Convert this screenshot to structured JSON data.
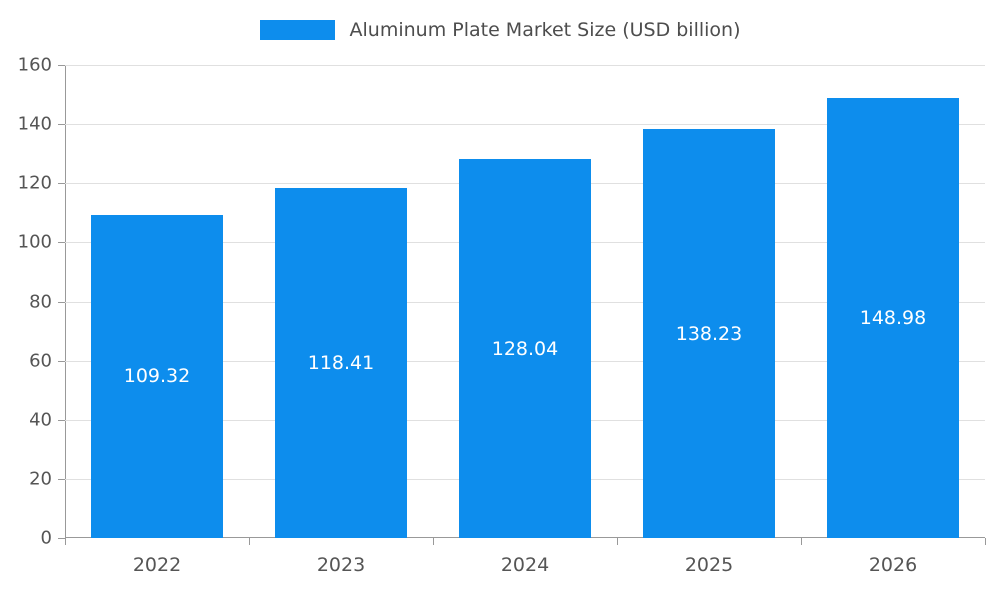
{
  "chart_data": {
    "type": "bar",
    "title": "Aluminum Plate Market Size (USD billion)",
    "categories": [
      "2022",
      "2023",
      "2024",
      "2025",
      "2026"
    ],
    "values": [
      109.32,
      118.41,
      128.04,
      138.23,
      148.98
    ],
    "value_labels": [
      "109.32",
      "118.41",
      "128.04",
      "138.23",
      "148.98"
    ],
    "xlabel": "",
    "ylabel": "",
    "ylim": [
      0,
      160
    ],
    "yticks": [
      0,
      20,
      40,
      60,
      80,
      100,
      120,
      140,
      160
    ],
    "grid": true,
    "legend_position": "top",
    "bar_width_fraction": 0.72
  },
  "colors": {
    "bar": "#0d8ded",
    "grid": "#e0e0e0",
    "axis": "#999999",
    "axis_text": "#555555",
    "title_text": "#4d4d4d",
    "value_label_text": "#ffffff",
    "background": "#ffffff"
  }
}
